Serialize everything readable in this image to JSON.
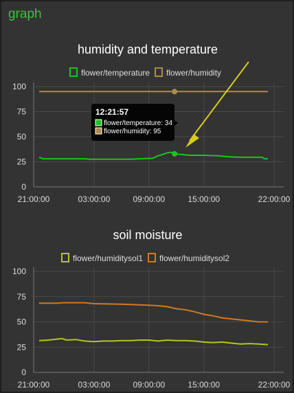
{
  "group": {
    "title": "graph"
  },
  "chart_data": [
    {
      "type": "line",
      "title": "humidity and temperature",
      "legend_position": "top",
      "grid": true,
      "ylim": [
        0,
        100
      ],
      "y_ticks": [
        "0",
        "25",
        "50",
        "75",
        "100"
      ],
      "x_tick_labels": [
        "21:00:00",
        "03:00:00",
        "09:00:00",
        "15:00:00",
        "22:00:00"
      ],
      "x_tick_hours": [
        0,
        6,
        12,
        18,
        25
      ],
      "x_range_hours": [
        0,
        25
      ],
      "series": [
        {
          "name": "flower/temperature",
          "color": "#22c022",
          "points": [
            [
              0,
              29.5
            ],
            [
              0.4,
              28
            ],
            [
              5,
              28
            ],
            [
              5.5,
              27.5
            ],
            [
              10,
              27.5
            ],
            [
              11,
              28
            ],
            [
              12.4,
              28.5
            ],
            [
              13,
              31
            ],
            [
              13.4,
              32
            ],
            [
              14,
              34
            ],
            [
              14.4,
              34.5
            ],
            [
              14.8,
              33
            ],
            [
              15.4,
              32.5
            ],
            [
              16.4,
              31.5
            ],
            [
              18,
              31.5
            ],
            [
              19.5,
              31
            ],
            [
              20.8,
              30
            ],
            [
              22,
              29.5
            ],
            [
              24.4,
              29.5
            ],
            [
              24.6,
              28
            ],
            [
              25,
              28
            ]
          ]
        },
        {
          "name": "flower/humidity",
          "color": "#b08a4a",
          "points": [
            [
              0,
              95
            ],
            [
              25,
              95
            ]
          ]
        }
      ],
      "tooltip": {
        "time": "12:21:57",
        "items": [
          "flower/temperature: 34",
          "flower/humidity: 95"
        ],
        "hover_x_hours": 14.8
      },
      "annotation": {
        "type": "arrow",
        "color": "#d8cc1e"
      }
    },
    {
      "type": "line",
      "title": "soil moisture",
      "legend_position": "top",
      "grid": true,
      "ylim": [
        0,
        100
      ],
      "y_ticks": [
        "0",
        "25",
        "50",
        "75",
        "100"
      ],
      "x_tick_labels": [
        "21:00:00",
        "03:00:00",
        "09:00:00",
        "15:00:00",
        "22:00:00"
      ],
      "x_tick_hours": [
        0,
        6,
        12,
        18,
        25
      ],
      "x_range_hours": [
        0,
        25
      ],
      "series": [
        {
          "name": "flower/humiditysol1",
          "color": "#b4c81e",
          "points": [
            [
              0,
              31.5
            ],
            [
              1,
              32
            ],
            [
              2,
              33
            ],
            [
              2.5,
              33.5
            ],
            [
              3,
              32
            ],
            [
              4,
              32.5
            ],
            [
              5,
              31
            ],
            [
              6,
              30.5
            ],
            [
              7,
              31
            ],
            [
              8,
              31
            ],
            [
              9,
              31.5
            ],
            [
              10,
              31.5
            ],
            [
              11,
              32
            ],
            [
              12,
              32
            ],
            [
              13,
              31
            ],
            [
              14,
              32
            ],
            [
              15,
              31.5
            ],
            [
              16,
              31.5
            ],
            [
              17,
              31
            ],
            [
              18,
              30
            ],
            [
              19,
              29.5
            ],
            [
              20,
              30
            ],
            [
              21,
              29
            ],
            [
              22,
              28
            ],
            [
              23,
              28.5
            ],
            [
              24,
              28
            ],
            [
              25,
              27.5
            ]
          ]
        },
        {
          "name": "flower/humiditysol2",
          "color": "#d07a22",
          "points": [
            [
              0,
              68.5
            ],
            [
              2,
              68.5
            ],
            [
              2.6,
              69
            ],
            [
              5,
              69
            ],
            [
              6,
              68
            ],
            [
              9,
              67.5
            ],
            [
              12,
              66.5
            ],
            [
              13,
              66
            ],
            [
              14,
              65
            ],
            [
              15,
              63
            ],
            [
              16,
              62
            ],
            [
              17,
              60
            ],
            [
              18,
              57.5
            ],
            [
              19,
              56
            ],
            [
              20,
              54
            ],
            [
              21,
              53
            ],
            [
              22,
              52
            ],
            [
              23,
              51
            ],
            [
              24,
              50
            ],
            [
              25,
              50
            ]
          ]
        }
      ]
    }
  ]
}
